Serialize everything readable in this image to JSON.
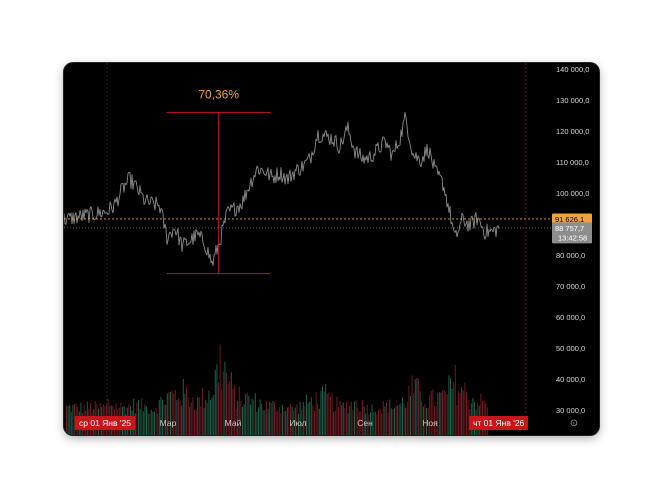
{
  "chart_data": {
    "type": "line",
    "price_axis": {
      "range": [
        25000,
        142000
      ],
      "ticks": [
        "140 000,0",
        "130 000,0",
        "120 000,0",
        "110 000,0",
        "100 000,0",
        "90 000,0",
        "80 000,0",
        "70 000,0",
        "60 000,0",
        "50 000,0",
        "40 000,0",
        "30 000,0"
      ]
    },
    "time_axis": {
      "start": "2025-01-01",
      "end": "2026-01-26",
      "start_badge": "ср 01 Янв '25",
      "end_badge": "чт 01 Янв '26",
      "months": [
        "Мар",
        "Май",
        "Июл",
        "Сен",
        "Ноя"
      ]
    },
    "price_series": [
      [
        "2025-01-01",
        94000
      ],
      [
        "2025-01-08",
        96000
      ],
      [
        "2025-01-15",
        101000
      ],
      [
        "2025-01-22",
        104500
      ],
      [
        "2025-01-29",
        101500
      ],
      [
        "2025-02-05",
        97500
      ],
      [
        "2025-02-12",
        96500
      ],
      [
        "2025-02-19",
        96000
      ],
      [
        "2025-02-26",
        85500
      ],
      [
        "2025-03-05",
        89000
      ],
      [
        "2025-03-12",
        83000
      ],
      [
        "2025-03-19",
        84500
      ],
      [
        "2025-03-26",
        86500
      ],
      [
        "2025-04-02",
        84000
      ],
      [
        "2025-04-09",
        77000
      ],
      [
        "2025-04-16",
        84500
      ],
      [
        "2025-04-23",
        93500
      ],
      [
        "2025-04-30",
        95000
      ],
      [
        "2025-05-07",
        97000
      ],
      [
        "2025-05-14",
        103000
      ],
      [
        "2025-05-21",
        108000
      ],
      [
        "2025-05-28",
        107000
      ],
      [
        "2025-06-04",
        105000
      ],
      [
        "2025-06-11",
        106500
      ],
      [
        "2025-06-18",
        104500
      ],
      [
        "2025-06-25",
        107000
      ],
      [
        "2025-07-02",
        108500
      ],
      [
        "2025-07-09",
        111000
      ],
      [
        "2025-07-16",
        119000
      ],
      [
        "2025-07-23",
        118500
      ],
      [
        "2025-07-30",
        117500
      ],
      [
        "2025-08-06",
        115000
      ],
      [
        "2025-08-13",
        121000
      ],
      [
        "2025-08-20",
        113500
      ],
      [
        "2025-08-27",
        111000
      ],
      [
        "2025-09-03",
        111500
      ],
      [
        "2025-09-10",
        114000
      ],
      [
        "2025-09-17",
        116500
      ],
      [
        "2025-09-24",
        112000
      ],
      [
        "2025-10-01",
        118000
      ],
      [
        "2025-10-06",
        124500
      ],
      [
        "2025-10-13",
        112500
      ],
      [
        "2025-10-20",
        110500
      ],
      [
        "2025-10-27",
        114500
      ],
      [
        "2025-11-03",
        106500
      ],
      [
        "2025-11-10",
        103000
      ],
      [
        "2025-11-17",
        92500
      ],
      [
        "2025-11-21",
        85000
      ],
      [
        "2025-11-28",
        91500
      ],
      [
        "2025-12-05",
        89500
      ],
      [
        "2025-12-12",
        92000
      ],
      [
        "2025-12-19",
        87500
      ],
      [
        "2025-12-26",
        87500
      ],
      [
        "2026-01-01",
        88757.7
      ]
    ],
    "volume_series": [
      [
        "2025-01-01",
        35500
      ],
      [
        "2025-01-15",
        33000
      ],
      [
        "2025-01-29",
        34500
      ],
      [
        "2025-02-12",
        32000
      ],
      [
        "2025-02-26",
        38500
      ],
      [
        "2025-03-12",
        40500
      ],
      [
        "2025-03-26",
        35500
      ],
      [
        "2025-04-09",
        42000
      ],
      [
        "2025-04-16",
        56500
      ],
      [
        "2025-04-30",
        38000
      ],
      [
        "2025-05-14",
        37000
      ],
      [
        "2025-05-28",
        34000
      ],
      [
        "2025-06-11",
        33500
      ],
      [
        "2025-06-25",
        32500
      ],
      [
        "2025-07-09",
        36000
      ],
      [
        "2025-07-23",
        38500
      ],
      [
        "2025-08-06",
        33000
      ],
      [
        "2025-08-20",
        35500
      ],
      [
        "2025-09-03",
        32500
      ],
      [
        "2025-09-17",
        33500
      ],
      [
        "2025-10-01",
        34500
      ],
      [
        "2025-10-13",
        42500
      ],
      [
        "2025-10-27",
        36500
      ],
      [
        "2025-11-10",
        38500
      ],
      [
        "2025-11-21",
        45500
      ],
      [
        "2025-12-05",
        37500
      ],
      [
        "2025-12-19",
        35000
      ],
      [
        "2026-01-01",
        33000
      ]
    ],
    "measurement": {
      "label": "70,36%",
      "low": 74000,
      "high": 126000,
      "date": "2025-04-15"
    },
    "last_price": {
      "value": "88 757,7",
      "countdown": "13:42:58"
    },
    "reference_price": {
      "value": "91 626,1",
      "level": 91626.1
    },
    "colors": {
      "background": "#000000",
      "line": "#8a8a8a",
      "axis_text": "#d6d6d6",
      "red": "#c6161c",
      "orange": "#f0a33c",
      "volume_up": "#1f6b55",
      "volume_down": "#7a1e24"
    },
    "grid": false
  },
  "ui": {
    "settings_icon": "⊙"
  }
}
